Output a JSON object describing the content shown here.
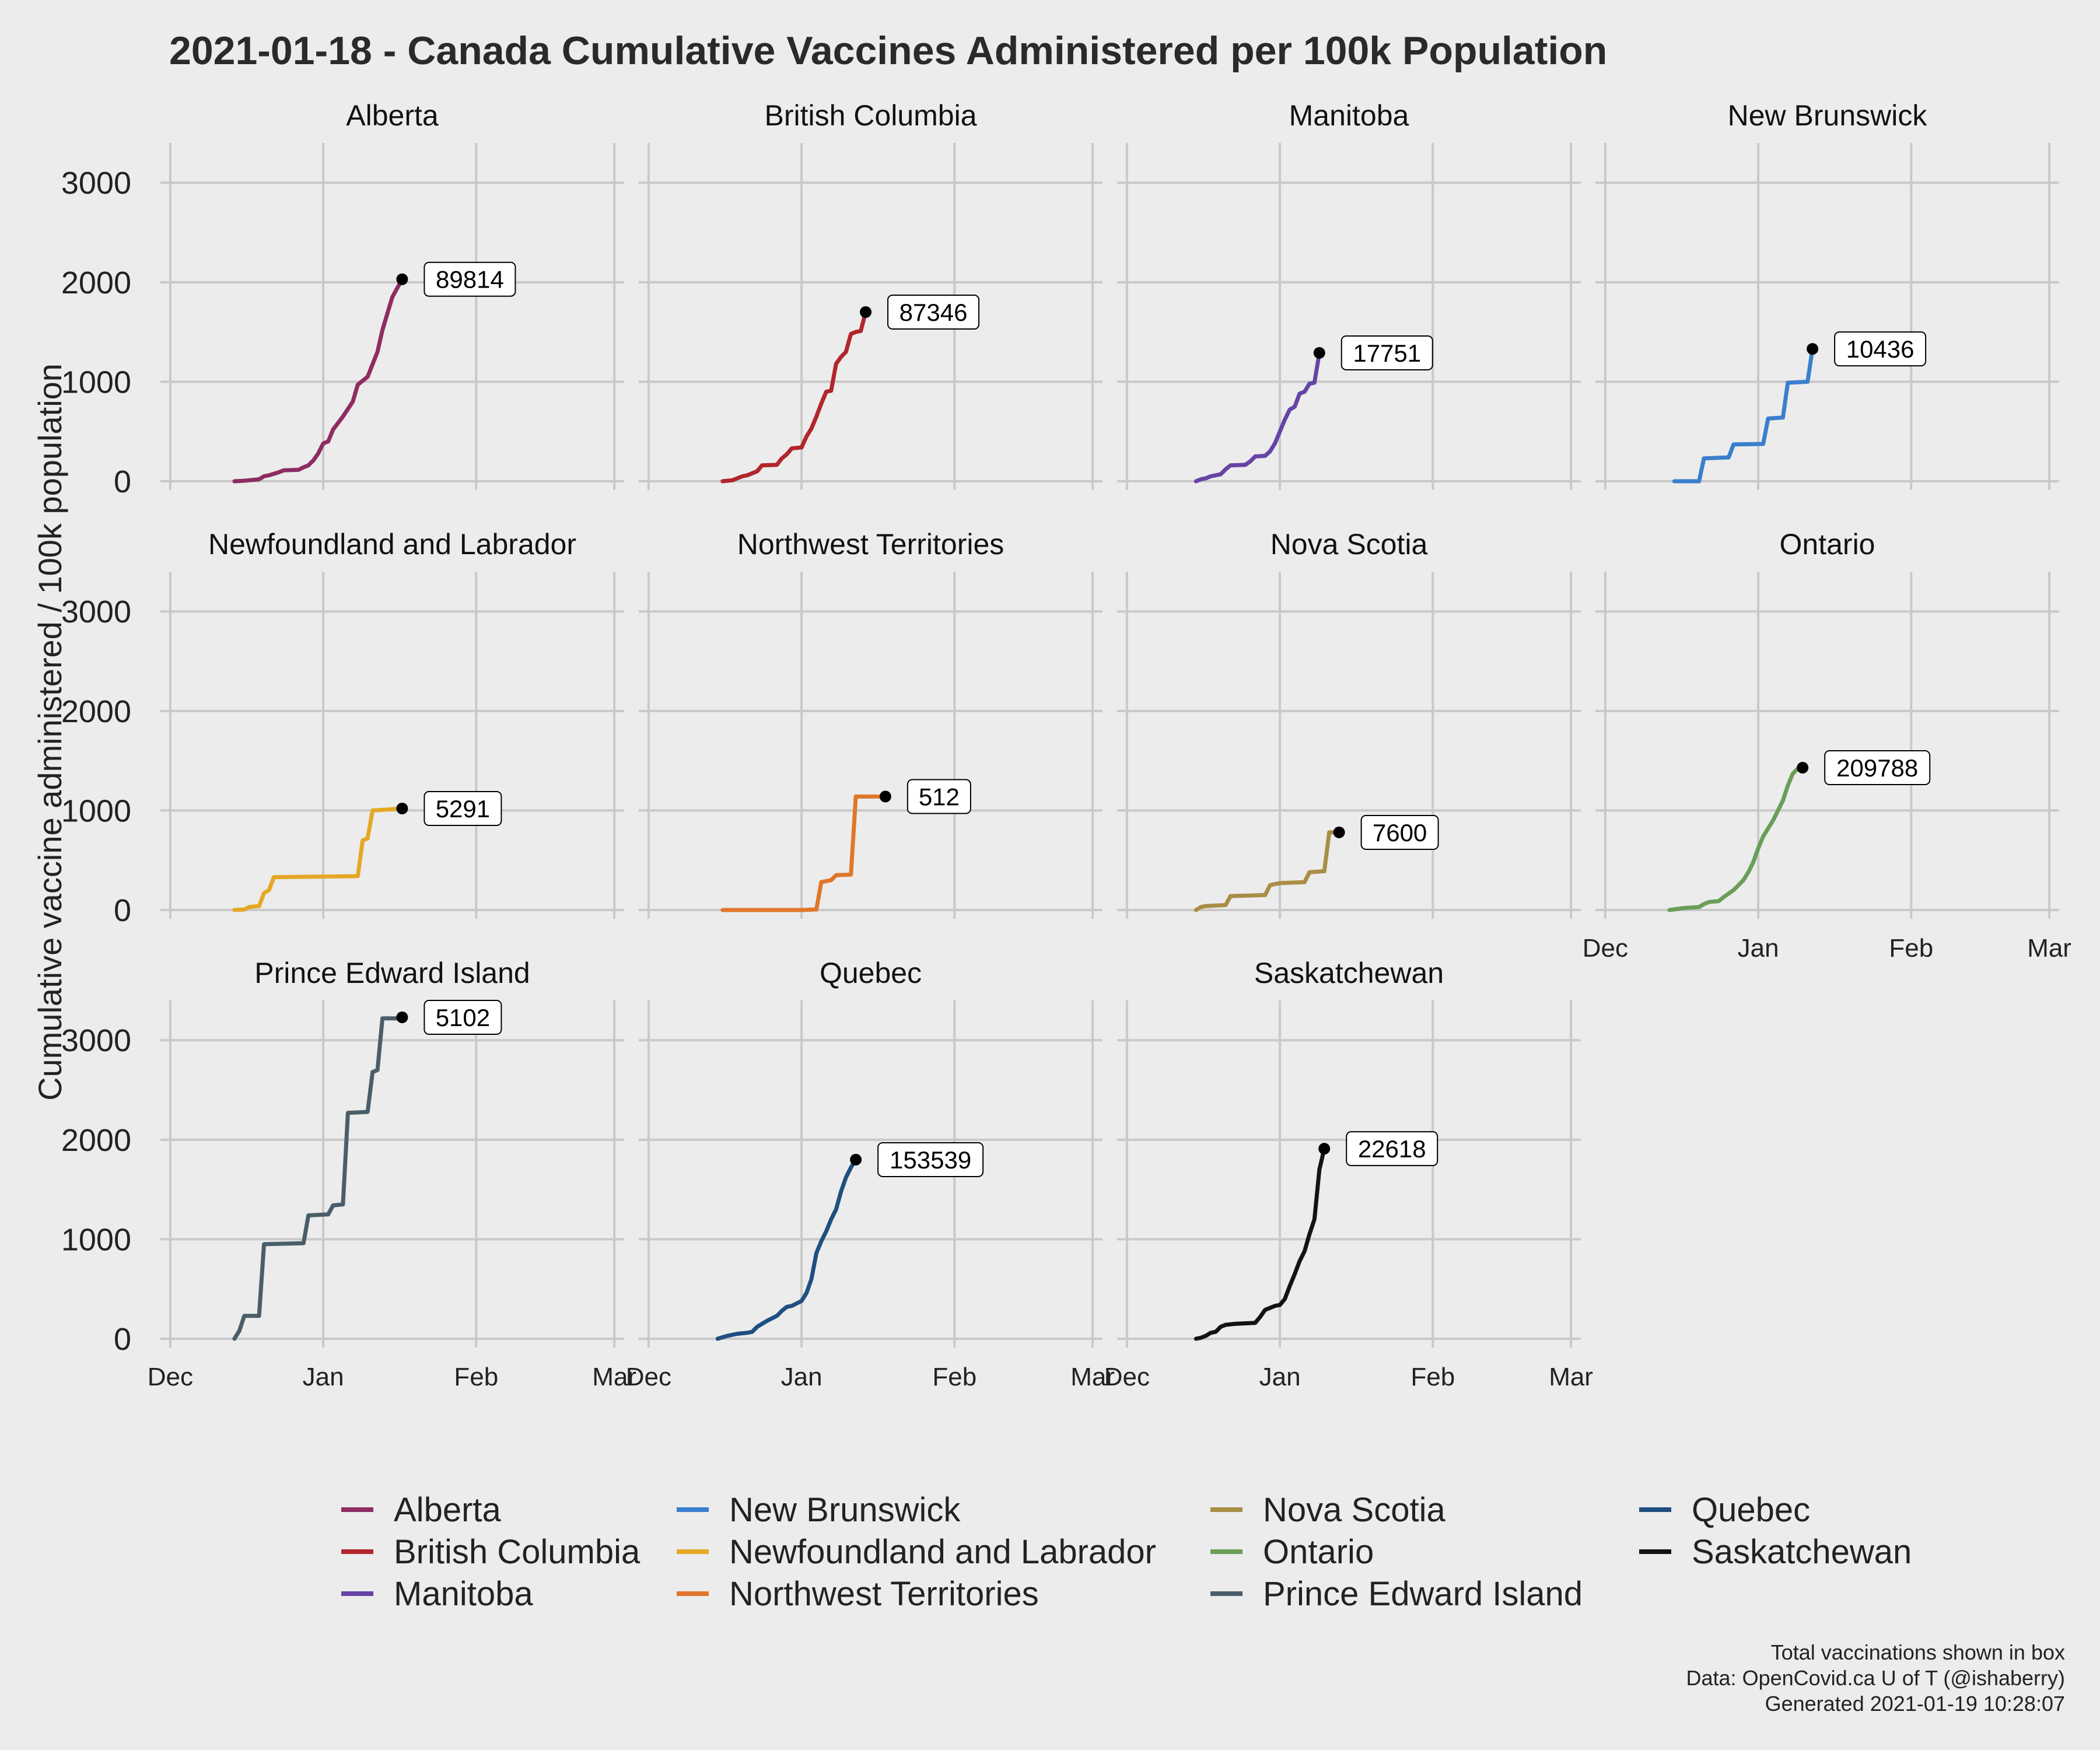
{
  "chart_data": {
    "type": "line",
    "title": "2021-01-18 - Canada Cumulative Vaccines Administered per 100k Population",
    "ylabel": "Cumulative vaccine administered / 100k population",
    "xlabel": "",
    "ylim": [
      0,
      3400
    ],
    "y_ticks": [
      "0",
      "1000",
      "2000",
      "3000"
    ],
    "x_ticks": [
      "Dec",
      "Jan",
      "Feb",
      "Mar"
    ],
    "x_tick_days": [
      0,
      31,
      62,
      90
    ],
    "xlim_days": [
      -2,
      92
    ],
    "facets": "by province, 4 columns",
    "grid": true,
    "legend": "bottom",
    "caption": [
      "Total vaccinations shown in box",
      "Data: OpenCovid.ca U of T (@ishaberry)",
      "Generated 2021-01-19 10:28:07"
    ],
    "series": [
      {
        "name": "Alberta",
        "color": "#8e2c62",
        "total_label": "89814",
        "points": [
          [
            13,
            0
          ],
          [
            15,
            5
          ],
          [
            16,
            10
          ],
          [
            18,
            20
          ],
          [
            19,
            50
          ],
          [
            20,
            60
          ],
          [
            22,
            90
          ],
          [
            23,
            110
          ],
          [
            26,
            115
          ],
          [
            27,
            140
          ],
          [
            28,
            160
          ],
          [
            29,
            210
          ],
          [
            30,
            280
          ],
          [
            31,
            380
          ],
          [
            32,
            400
          ],
          [
            33,
            520
          ],
          [
            35,
            650
          ],
          [
            37,
            800
          ],
          [
            38,
            970
          ],
          [
            40,
            1050
          ],
          [
            42,
            1300
          ],
          [
            43,
            1520
          ],
          [
            45,
            1850
          ],
          [
            47,
            2030
          ]
        ]
      },
      {
        "name": "British Columbia",
        "color": "#b2262b",
        "total_label": "87346",
        "points": [
          [
            15,
            0
          ],
          [
            16,
            5
          ],
          [
            17,
            10
          ],
          [
            18,
            30
          ],
          [
            19,
            50
          ],
          [
            20,
            60
          ],
          [
            21,
            80
          ],
          [
            22,
            100
          ],
          [
            23,
            160
          ],
          [
            26,
            165
          ],
          [
            27,
            230
          ],
          [
            28,
            270
          ],
          [
            29,
            330
          ],
          [
            31,
            340
          ],
          [
            32,
            450
          ],
          [
            33,
            530
          ],
          [
            34,
            650
          ],
          [
            35,
            780
          ],
          [
            36,
            900
          ],
          [
            37,
            910
          ],
          [
            38,
            1180
          ],
          [
            39,
            1250
          ],
          [
            40,
            1300
          ],
          [
            41,
            1480
          ],
          [
            42,
            1500
          ],
          [
            43,
            1510
          ],
          [
            44,
            1700
          ]
        ]
      },
      {
        "name": "Manitoba",
        "color": "#6644a4",
        "total_label": "17751",
        "points": [
          [
            14,
            0
          ],
          [
            15,
            20
          ],
          [
            16,
            30
          ],
          [
            17,
            50
          ],
          [
            19,
            70
          ],
          [
            20,
            120
          ],
          [
            21,
            160
          ],
          [
            24,
            165
          ],
          [
            25,
            200
          ],
          [
            26,
            250
          ],
          [
            28,
            255
          ],
          [
            29,
            300
          ],
          [
            30,
            380
          ],
          [
            31,
            500
          ],
          [
            32,
            620
          ],
          [
            33,
            720
          ],
          [
            34,
            750
          ],
          [
            35,
            880
          ],
          [
            36,
            900
          ],
          [
            37,
            980
          ],
          [
            38,
            990
          ],
          [
            39,
            1290
          ]
        ]
      },
      {
        "name": "New Brunswick",
        "color": "#3a7fcc",
        "total_label": "10436",
        "points": [
          [
            14,
            0
          ],
          [
            19,
            0
          ],
          [
            20,
            230
          ],
          [
            25,
            240
          ],
          [
            26,
            370
          ],
          [
            32,
            375
          ],
          [
            33,
            630
          ],
          [
            36,
            640
          ],
          [
            37,
            990
          ],
          [
            41,
            1000
          ],
          [
            42,
            1330
          ]
        ]
      },
      {
        "name": "Newfoundland and Labrador",
        "color": "#e5a825",
        "total_label": "5291",
        "points": [
          [
            13,
            0
          ],
          [
            15,
            5
          ],
          [
            16,
            30
          ],
          [
            18,
            40
          ],
          [
            19,
            170
          ],
          [
            20,
            200
          ],
          [
            21,
            330
          ],
          [
            38,
            340
          ],
          [
            39,
            700
          ],
          [
            40,
            720
          ],
          [
            41,
            1000
          ],
          [
            44,
            1010
          ],
          [
            47,
            1020
          ]
        ]
      },
      {
        "name": "Northwest Territories",
        "color": "#e0762a",
        "total_label": "512",
        "points": [
          [
            15,
            0
          ],
          [
            31,
            0
          ],
          [
            34,
            5
          ],
          [
            35,
            280
          ],
          [
            37,
            300
          ],
          [
            38,
            350
          ],
          [
            41,
            355
          ],
          [
            42,
            1140
          ],
          [
            46,
            1140
          ],
          [
            48,
            1140
          ]
        ]
      },
      {
        "name": "Nova Scotia",
        "color": "#a98e45",
        "total_label": "7600",
        "points": [
          [
            14,
            0
          ],
          [
            15,
            30
          ],
          [
            16,
            40
          ],
          [
            20,
            50
          ],
          [
            21,
            140
          ],
          [
            28,
            150
          ],
          [
            29,
            250
          ],
          [
            30,
            260
          ],
          [
            31,
            270
          ],
          [
            36,
            280
          ],
          [
            37,
            380
          ],
          [
            40,
            390
          ],
          [
            41,
            780
          ],
          [
            43,
            780
          ]
        ]
      },
      {
        "name": "Ontario",
        "color": "#6a9e58",
        "total_label": "209788",
        "points": [
          [
            13,
            0
          ],
          [
            16,
            20
          ],
          [
            19,
            30
          ],
          [
            20,
            60
          ],
          [
            21,
            80
          ],
          [
            23,
            90
          ],
          [
            24,
            130
          ],
          [
            26,
            200
          ],
          [
            28,
            300
          ],
          [
            29,
            380
          ],
          [
            30,
            480
          ],
          [
            31,
            620
          ],
          [
            32,
            740
          ],
          [
            34,
            900
          ],
          [
            36,
            1100
          ],
          [
            37,
            1250
          ],
          [
            38,
            1370
          ],
          [
            39,
            1420
          ],
          [
            40,
            1430
          ]
        ]
      },
      {
        "name": "Prince Edward Island",
        "color": "#4a5e6a",
        "total_label": "5102",
        "points": [
          [
            13,
            0
          ],
          [
            14,
            80
          ],
          [
            15,
            230
          ],
          [
            18,
            230
          ],
          [
            19,
            950
          ],
          [
            27,
            960
          ],
          [
            28,
            1240
          ],
          [
            32,
            1250
          ],
          [
            33,
            1340
          ],
          [
            35,
            1350
          ],
          [
            36,
            2270
          ],
          [
            40,
            2280
          ],
          [
            41,
            2680
          ],
          [
            42,
            2700
          ],
          [
            43,
            3220
          ],
          [
            46,
            3220
          ],
          [
            47,
            3230
          ]
        ]
      },
      {
        "name": "Quebec",
        "color": "#1f4f80",
        "total_label": "153539",
        "points": [
          [
            14,
            0
          ],
          [
            16,
            30
          ],
          [
            18,
            50
          ],
          [
            20,
            60
          ],
          [
            21,
            70
          ],
          [
            22,
            120
          ],
          [
            24,
            180
          ],
          [
            26,
            230
          ],
          [
            27,
            280
          ],
          [
            28,
            320
          ],
          [
            29,
            330
          ],
          [
            31,
            380
          ],
          [
            32,
            460
          ],
          [
            33,
            600
          ],
          [
            34,
            860
          ],
          [
            35,
            980
          ],
          [
            36,
            1080
          ],
          [
            37,
            1200
          ],
          [
            38,
            1300
          ],
          [
            39,
            1480
          ],
          [
            40,
            1620
          ],
          [
            41,
            1720
          ],
          [
            42,
            1800
          ]
        ]
      },
      {
        "name": "Saskatchewan",
        "color": "#121410",
        "total_label": "22618",
        "points": [
          [
            14,
            0
          ],
          [
            15,
            10
          ],
          [
            16,
            30
          ],
          [
            17,
            60
          ],
          [
            18,
            70
          ],
          [
            19,
            120
          ],
          [
            20,
            140
          ],
          [
            22,
            150
          ],
          [
            26,
            160
          ],
          [
            27,
            220
          ],
          [
            28,
            290
          ],
          [
            30,
            330
          ],
          [
            31,
            340
          ],
          [
            32,
            400
          ],
          [
            33,
            530
          ],
          [
            34,
            650
          ],
          [
            35,
            780
          ],
          [
            36,
            880
          ],
          [
            37,
            1050
          ],
          [
            38,
            1200
          ],
          [
            39,
            1700
          ],
          [
            40,
            1910
          ]
        ]
      }
    ]
  }
}
